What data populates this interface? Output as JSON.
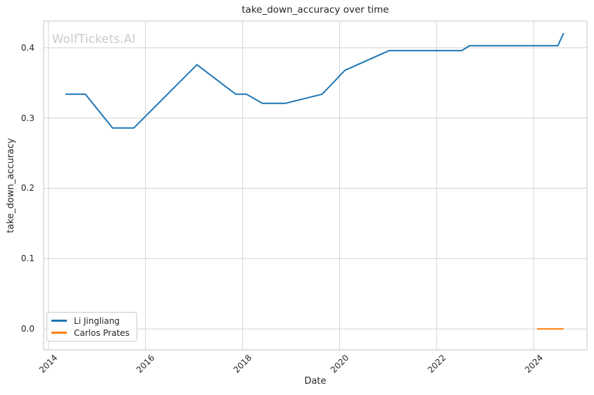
{
  "figure": {
    "watermark": "WolfTickets.AI"
  },
  "style": {
    "background": "#ffffff",
    "grid_color": "#d4d4d4",
    "spine_color": "#cfcfcf",
    "text_color": "#262626",
    "watermark_color": "#c9c9c9",
    "legend_border": "#cccccc"
  },
  "chart_data": {
    "type": "line",
    "title": "take_down_accuracy over time",
    "xlabel": "Date",
    "ylabel": "take_down_accuracy",
    "x_unit": "decimal_year",
    "xlim": [
      2013.9,
      2025.1
    ],
    "ylim": [
      -0.03,
      0.438
    ],
    "grid": true,
    "legend_position": "lower left",
    "xticks": [
      {
        "value": 2014,
        "label": "2014"
      },
      {
        "value": 2016,
        "label": "2016"
      },
      {
        "value": 2018,
        "label": "2018"
      },
      {
        "value": 2020,
        "label": "2020"
      },
      {
        "value": 2022,
        "label": "2022"
      },
      {
        "value": 2024,
        "label": "2024"
      }
    ],
    "yticks": [
      {
        "value": 0.0,
        "label": "0.0"
      },
      {
        "value": 0.1,
        "label": "0.1"
      },
      {
        "value": 0.2,
        "label": "0.2"
      },
      {
        "value": 0.3,
        "label": "0.3"
      },
      {
        "value": 0.4,
        "label": "0.4"
      }
    ],
    "series": [
      {
        "name": "Li Jingliang",
        "color": "#1f77b4",
        "points": [
          [
            2014.35,
            0.334
          ],
          [
            2014.76,
            0.334
          ],
          [
            2015.32,
            0.286
          ],
          [
            2015.76,
            0.286
          ],
          [
            2017.06,
            0.376
          ],
          [
            2017.86,
            0.334
          ],
          [
            2018.08,
            0.334
          ],
          [
            2018.41,
            0.321
          ],
          [
            2018.88,
            0.321
          ],
          [
            2019.64,
            0.334
          ],
          [
            2020.11,
            0.368
          ],
          [
            2021.02,
            0.396
          ],
          [
            2022.52,
            0.396
          ],
          [
            2022.68,
            0.403
          ],
          [
            2024.5,
            0.403
          ],
          [
            2024.62,
            0.421
          ]
        ]
      },
      {
        "name": "Carlos Prates",
        "color": "#ff7f0e",
        "points": [
          [
            2024.07,
            0.0
          ],
          [
            2024.62,
            0.0
          ]
        ]
      }
    ]
  }
}
